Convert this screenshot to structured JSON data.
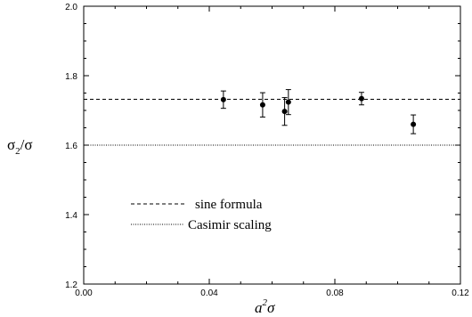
{
  "chart_data": {
    "type": "scatter",
    "title": "",
    "xlabel": {
      "base": "a",
      "sup": "2",
      "tail": "σ"
    },
    "ylabel": {
      "base": "σ",
      "sub": "2",
      "tail": "/σ"
    },
    "xlim": [
      0.0,
      0.12
    ],
    "ylim": [
      1.2,
      2.0
    ],
    "xticks": [
      0.0,
      0.04,
      0.08,
      0.12
    ],
    "xtick_labels": [
      "0.00",
      "0.04",
      "0.08",
      "0.12"
    ],
    "yticks": [
      1.2,
      1.4,
      1.6,
      1.8,
      2.0
    ],
    "ytick_labels": [
      "1.2",
      "1.4",
      "1.6",
      "1.8",
      "2.0"
    ],
    "x_minor_step": 0.01,
    "y_minor_step": 0.05,
    "grid": false,
    "legend_position": "lower-left",
    "points": [
      {
        "x": 0.0445,
        "y": 1.731,
        "err": 0.025
      },
      {
        "x": 0.057,
        "y": 1.716,
        "err": 0.035
      },
      {
        "x": 0.064,
        "y": 1.697,
        "err": 0.04
      },
      {
        "x": 0.0652,
        "y": 1.724,
        "err": 0.036
      },
      {
        "x": 0.0885,
        "y": 1.734,
        "err": 0.018
      },
      {
        "x": 0.105,
        "y": 1.66,
        "err": 0.027
      }
    ],
    "reference_lines": [
      {
        "name": "sine formula",
        "y": 1.732,
        "style": "dashed"
      },
      {
        "name": "Casimir scaling",
        "y": 1.6,
        "style": "dotted"
      }
    ]
  }
}
